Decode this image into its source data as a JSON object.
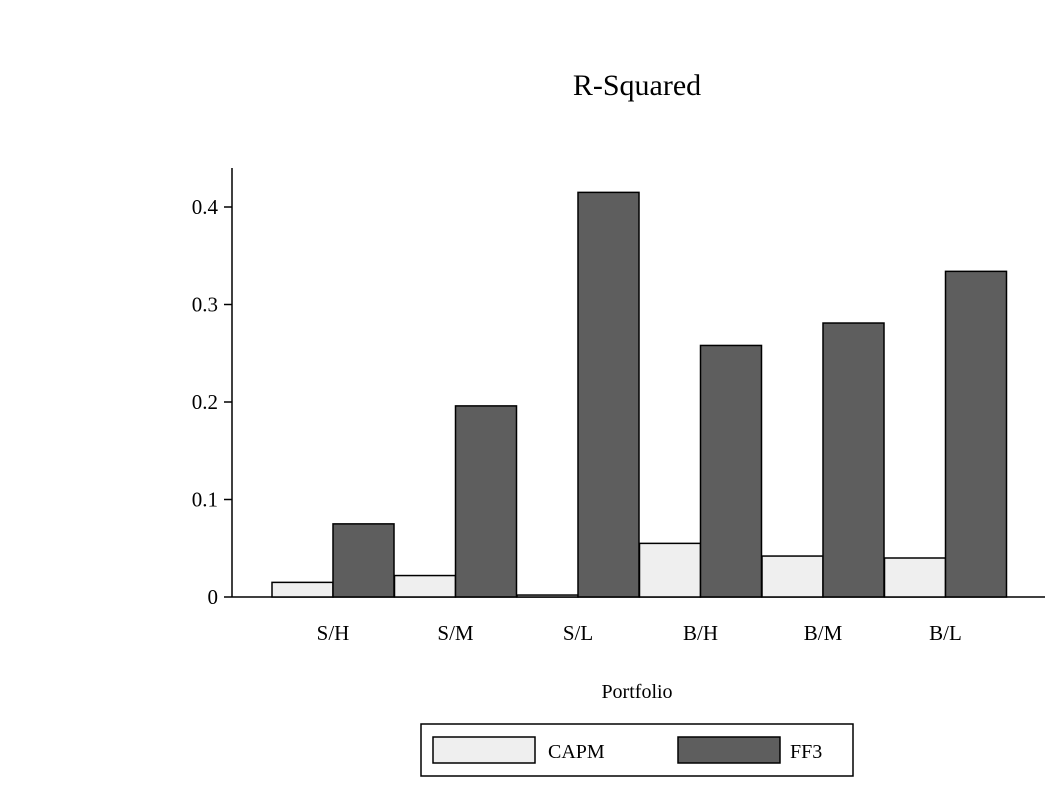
{
  "chart_data": {
    "type": "bar",
    "title": "R-Squared",
    "xlabel": "Portfolio",
    "ylabel": "",
    "categories": [
      "S/H",
      "S/M",
      "S/L",
      "B/H",
      "B/M",
      "B/L"
    ],
    "series": [
      {
        "name": "CAPM",
        "color": "#efefef",
        "values": [
          0.015,
          0.022,
          0.002,
          0.055,
          0.042,
          0.04
        ]
      },
      {
        "name": "FF3",
        "color": "#5e5e5e",
        "values": [
          0.075,
          0.196,
          0.415,
          0.258,
          0.281,
          0.334
        ]
      }
    ],
    "yticks": [
      "0",
      "0.1",
      "0.2",
      "0.3",
      "0.4"
    ],
    "ytick_values": [
      0,
      0.1,
      0.2,
      0.3,
      0.4
    ],
    "ylim": [
      0,
      0.44
    ],
    "grid": false,
    "legend_position": "bottom-center"
  }
}
